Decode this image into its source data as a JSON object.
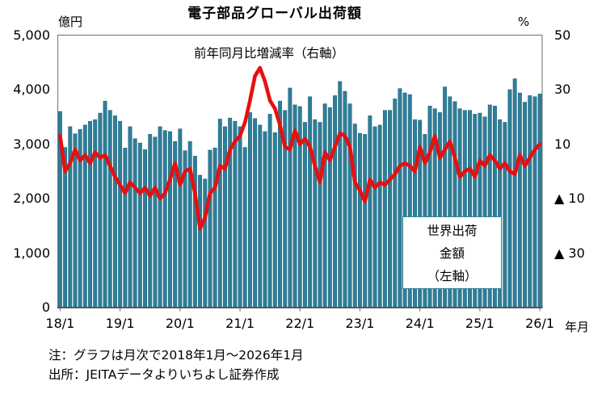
{
  "title": "電子部品グローバル出荷額",
  "axis": {
    "left_unit": "億円",
    "right_unit": "%",
    "x_unit": "年月",
    "left_ticks": [
      "5,000",
      "4,000",
      "3,000",
      "2,000",
      "1,000",
      "0"
    ],
    "right_ticks": [
      "50",
      "30",
      "10",
      "▲ 10",
      "▲ 30"
    ],
    "x_ticks": [
      "18/1",
      "19/1",
      "20/1",
      "21/1",
      "22/1",
      "23/1",
      "24/1",
      "25/1",
      "26/1"
    ]
  },
  "annotations": {
    "line_label": "前年同月比増減率（右軸）",
    "bar_label_lines": [
      "世界出荷",
      "金額",
      "（左軸）"
    ]
  },
  "notes": [
    "注：グラフは月次で2018年1月～2026年1月",
    "出所：JEITAデータよりいちよし証券作成"
  ],
  "colors": {
    "bar": "#2e7e99",
    "bar_edge": "#1d6077",
    "line": "#e80f0f",
    "frame": "#808080",
    "axis_bottom": "#4d4d4d",
    "text": "#000000"
  },
  "chart_data": {
    "type": "bar+line",
    "title": "電子部品グローバル出荷額",
    "x_label": "年月",
    "left_axis": {
      "unit": "億円",
      "min": 0,
      "max": 5000,
      "tick_step": 1000
    },
    "right_axis": {
      "unit": "%",
      "min": -50,
      "max": 50,
      "tick_step": 20,
      "labeled_ticks": [
        50,
        30,
        10,
        -10,
        -30
      ],
      "negative_style": "▲"
    },
    "grid": false,
    "legend": "in-plot text labels",
    "months": [
      "18/1",
      "18/2",
      "18/3",
      "18/4",
      "18/5",
      "18/6",
      "18/7",
      "18/8",
      "18/9",
      "18/10",
      "18/11",
      "18/12",
      "19/1",
      "19/2",
      "19/3",
      "19/4",
      "19/5",
      "19/6",
      "19/7",
      "19/8",
      "19/9",
      "19/10",
      "19/11",
      "19/12",
      "20/1",
      "20/2",
      "20/3",
      "20/4",
      "20/5",
      "20/6",
      "20/7",
      "20/8",
      "20/9",
      "20/10",
      "20/11",
      "20/12",
      "21/1",
      "21/2",
      "21/3",
      "21/4",
      "21/5",
      "21/6",
      "21/7",
      "21/8",
      "21/9",
      "21/10",
      "21/11",
      "21/12",
      "22/1",
      "22/2",
      "22/3",
      "22/4",
      "22/5",
      "22/6",
      "22/7",
      "22/8",
      "22/9",
      "22/10",
      "22/11",
      "22/12",
      "23/1",
      "23/2",
      "23/3",
      "23/4",
      "23/5",
      "23/6",
      "23/7",
      "23/8",
      "23/9",
      "23/10",
      "23/11",
      "23/12",
      "24/1",
      "24/2",
      "24/3",
      "24/4",
      "24/5",
      "24/6",
      "24/7",
      "24/8",
      "24/9",
      "24/10",
      "24/11",
      "24/12",
      "25/1",
      "25/2",
      "25/3",
      "25/4",
      "25/5",
      "25/6",
      "25/7",
      "25/8",
      "25/9",
      "25/10",
      "25/11",
      "25/12",
      "26/1"
    ],
    "series": [
      {
        "name": "世界出荷金額（左軸）",
        "type": "bar",
        "axis": "left",
        "values": [
          3600,
          2940,
          3320,
          3190,
          3270,
          3350,
          3420,
          3450,
          3570,
          3790,
          3620,
          3520,
          3420,
          2930,
          3320,
          3100,
          3020,
          2900,
          3180,
          3130,
          3320,
          3250,
          3230,
          3050,
          3280,
          2880,
          3050,
          2780,
          2430,
          2360,
          2890,
          2930,
          3460,
          3320,
          3480,
          3420,
          3320,
          2940,
          3580,
          3470,
          3350,
          3230,
          3550,
          3210,
          3790,
          3620,
          4030,
          3720,
          3690,
          3400,
          3870,
          3450,
          3400,
          3740,
          3670,
          3890,
          4150,
          3970,
          3740,
          3370,
          3200,
          3180,
          3520,
          3320,
          3350,
          3620,
          3620,
          3830,
          4020,
          3940,
          3910,
          3450,
          3440,
          3180,
          3700,
          3650,
          3580,
          4050,
          3870,
          3780,
          3650,
          3620,
          3620,
          3550,
          3570,
          3500,
          3720,
          3700,
          3450,
          3400,
          4000,
          4200,
          3940,
          3770,
          3890,
          3870,
          3920
        ]
      },
      {
        "name": "前年同月比増減率（右軸）",
        "type": "line",
        "axis": "right",
        "values": [
          13,
          0,
          3,
          8,
          4,
          6,
          3,
          7,
          5,
          6,
          2,
          -2,
          -5,
          -8,
          -4,
          -6,
          -8,
          -6,
          -9,
          -6,
          -10,
          -8,
          -3,
          3,
          -5,
          0,
          1,
          -8,
          -21,
          -17,
          -8,
          -6,
          2,
          1,
          8,
          11,
          13,
          18,
          26,
          35,
          38,
          33,
          26,
          23,
          17,
          9,
          8,
          15,
          10,
          12,
          9,
          2,
          -4,
          7,
          4,
          9,
          14,
          13,
          9,
          -4,
          -7,
          -11,
          -3,
          -6,
          -4,
          -5,
          -3,
          -1,
          2,
          3,
          2,
          0,
          9,
          3,
          7,
          13,
          5,
          8,
          11,
          5,
          -2,
          0,
          1,
          -2,
          4,
          2,
          6,
          4,
          1,
          3,
          0,
          -1,
          6,
          2,
          5,
          8,
          10
        ]
      }
    ]
  }
}
